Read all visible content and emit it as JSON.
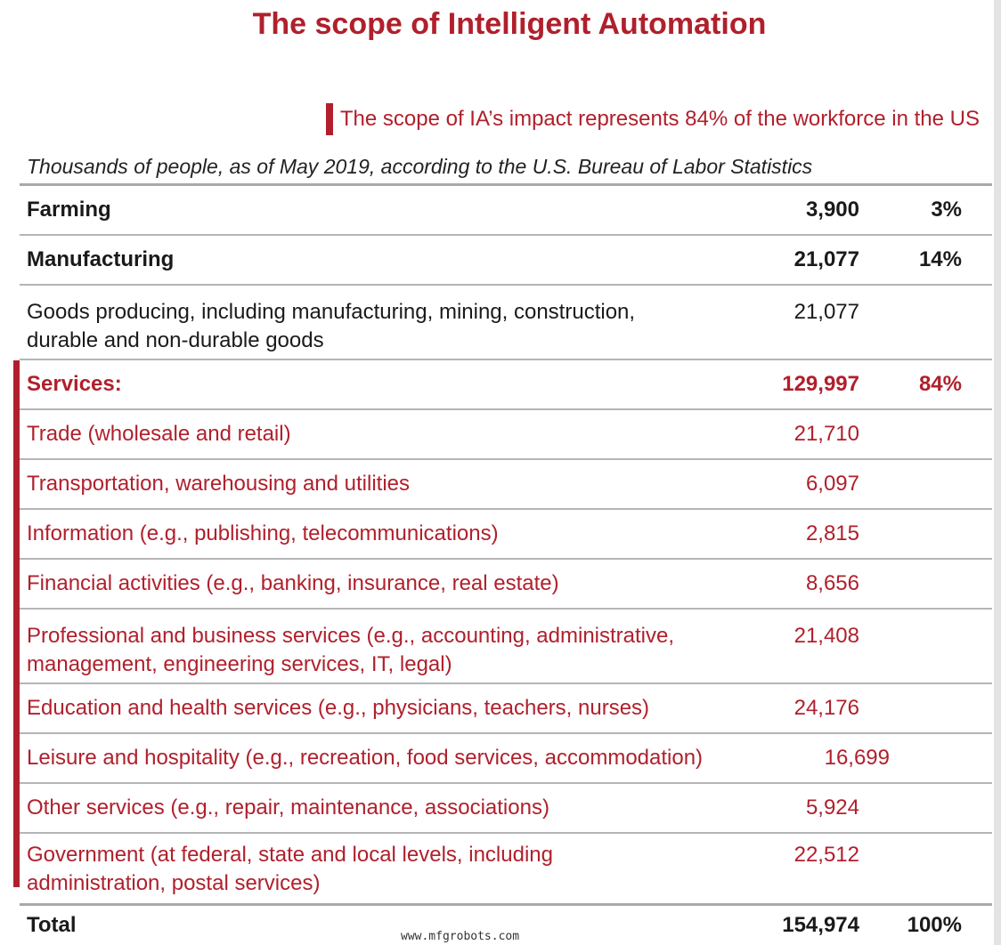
{
  "title": "The scope of Intelligent Automation",
  "callout": "The scope of IA’s impact represents 84% of the workforce in the US",
  "subtitle": "Thousands of people, as of May 2019, according to the U.S. Bureau of Labor Statistics",
  "colors": {
    "accent": "#b0202c",
    "rule": "#b5b5b5"
  },
  "rows": [
    {
      "label": "Farming",
      "value": "3,900",
      "pct": "3%"
    },
    {
      "label": "Manufacturing",
      "value": "21,077",
      "pct": "14%"
    },
    {
      "label": "Goods producing, including manufacturing, mining, construction, durable and non-durable goods",
      "value": "21,077",
      "pct": ""
    },
    {
      "label": "Services:",
      "value": "129,997",
      "pct": "84%"
    },
    {
      "label": "Trade (wholesale and retail)",
      "value": "21,710",
      "pct": ""
    },
    {
      "label": "Transportation, warehousing and utilities",
      "value": "6,097",
      "pct": ""
    },
    {
      "label": "Information (e.g., publishing, telecommunications)",
      "value": "2,815",
      "pct": ""
    },
    {
      "label": "Financial activities (e.g., banking, insurance, real estate)",
      "value": "8,656",
      "pct": ""
    },
    {
      "label": "Professional and business services (e.g., accounting, administrative, management, engineering services, IT, legal)",
      "value": "21,408",
      "pct": ""
    },
    {
      "label": "Education and health services (e.g., physicians, teachers, nurses)",
      "value": "24,176",
      "pct": ""
    },
    {
      "label": "Leisure and hospitality (e.g., recreation, food services, accommodation)",
      "value": "16,699",
      "pct": ""
    },
    {
      "label": "Other services (e.g., repair, maintenance, associations)",
      "value": "5,924",
      "pct": ""
    },
    {
      "label": "Government (at federal, state and local levels, including administration, postal services)",
      "value": "22,512",
      "pct": ""
    }
  ],
  "total": {
    "label": "Total",
    "value": "154,974",
    "pct": "100%"
  },
  "watermark": "www.mfgrobots.com"
}
